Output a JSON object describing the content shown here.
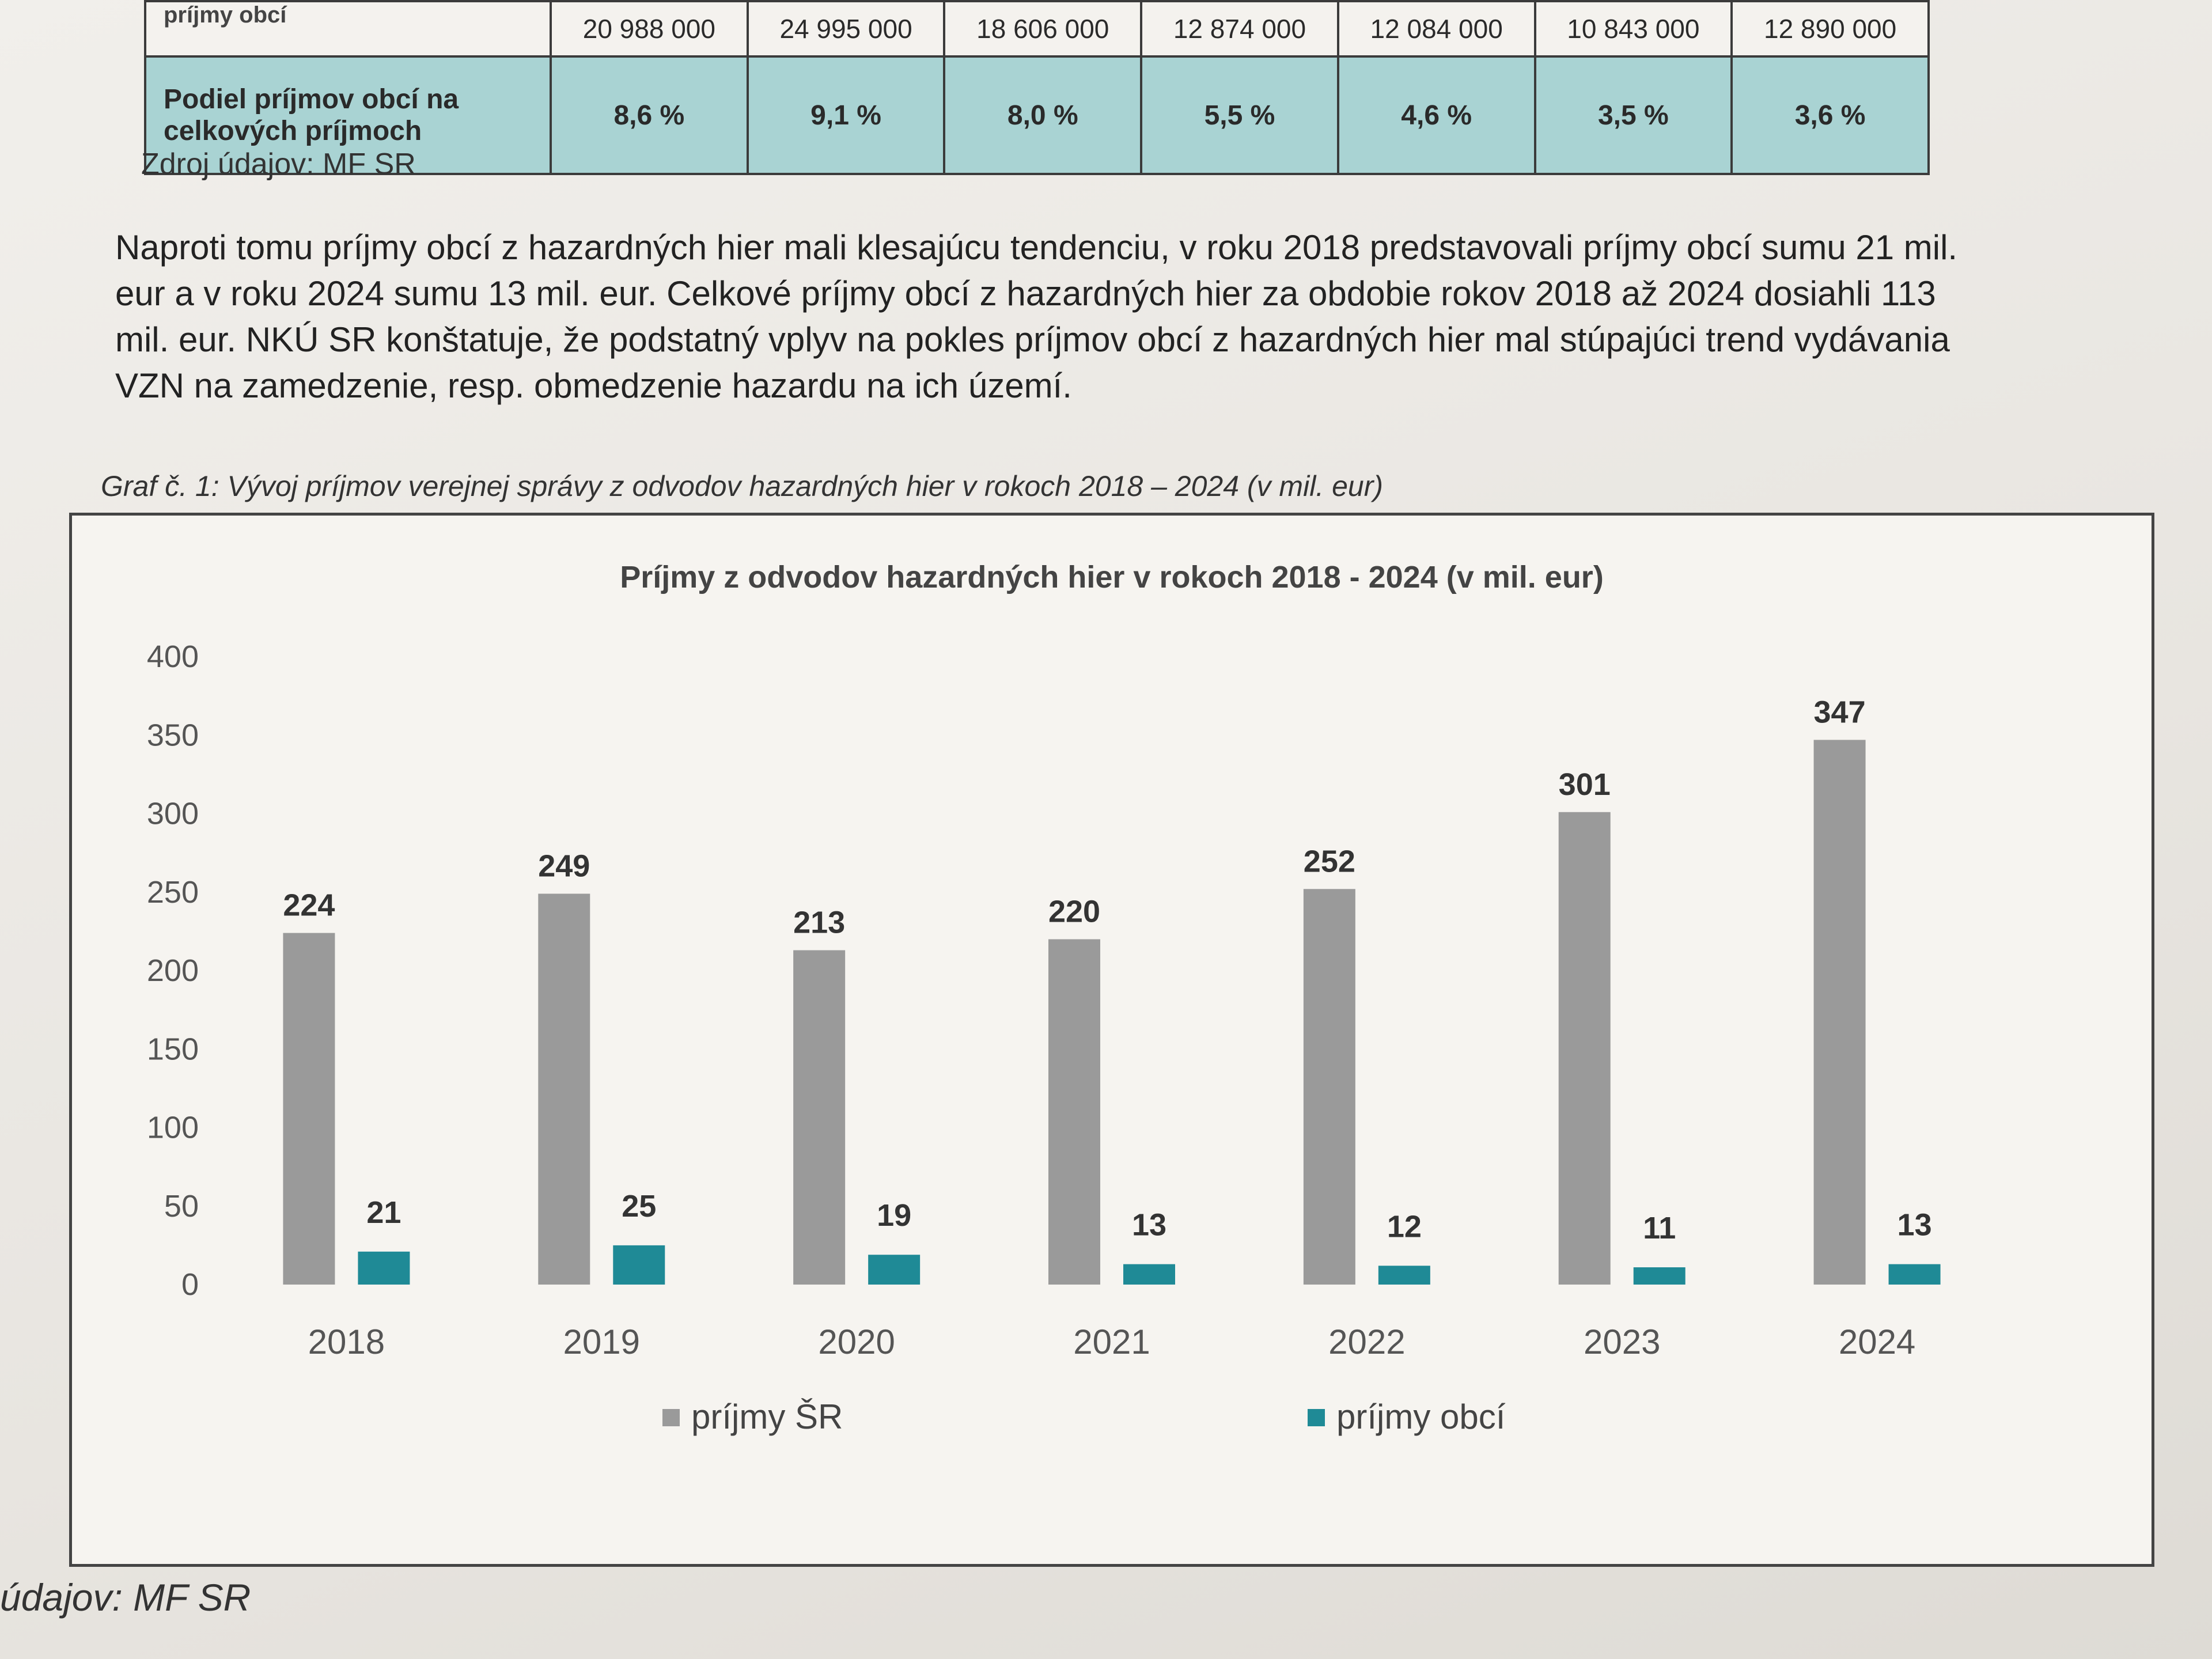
{
  "table": {
    "row1": {
      "label": "príjmy obcí",
      "values": [
        "20 988 000",
        "24 995 000",
        "18 606 000",
        "12 874 000",
        "12 084 000",
        "10 843 000",
        "12 890 000"
      ]
    },
    "row2": {
      "label": "Podiel príjmov obcí na celkových príjmoch",
      "values": [
        "8,6 %",
        "9,1 %",
        "8,0 %",
        "5,5 %",
        "4,6 %",
        "3,5 %",
        "3,6 %"
      ]
    },
    "source": "Zdroj údajov: MF SR"
  },
  "paragraph": "Naproti tomu príjmy obcí z hazardných hier mali klesajúcu tendenciu, v roku 2018 predstavovali príjmy obcí sumu 21 mil. eur a v roku 2024 sumu 13 mil. eur. Celkové príjmy obcí z hazardných hier za obdobie rokov 2018 až 2024 dosiahli 113 mil. eur. NKÚ SR konštatuje, že podstatný vplyv na pokles príjmov obcí z hazardných hier mal stúpajúci trend vydávania VZN na zamedzenie, resp. obmedzenie hazardu na ich území.",
  "caption": "Graf č. 1: Vývoj príjmov verejnej správy z odvodov hazardných hier v rokoch 2018 – 2024 (v mil. eur)",
  "bottom_source": "údajov: MF SR",
  "colors": {
    "series1": "#9a9a9a",
    "series2": "#1f8a96"
  },
  "chart_data": {
    "type": "bar",
    "title": "Príjmy z odvodov hazardných hier v rokoch 2018 - 2024 (v mil. eur)",
    "categories": [
      "2018",
      "2019",
      "2020",
      "2021",
      "2022",
      "2023",
      "2024"
    ],
    "series": [
      {
        "name": "príjmy ŠR",
        "values": [
          224,
          249,
          213,
          220,
          252,
          301,
          347
        ]
      },
      {
        "name": "príjmy obcí",
        "values": [
          21,
          25,
          19,
          13,
          12,
          11,
          13
        ]
      }
    ],
    "yticks": [
      0,
      50,
      100,
      150,
      200,
      250,
      300,
      350,
      400
    ],
    "ylim": [
      0,
      400
    ],
    "grid": false,
    "legend": "bottom"
  }
}
